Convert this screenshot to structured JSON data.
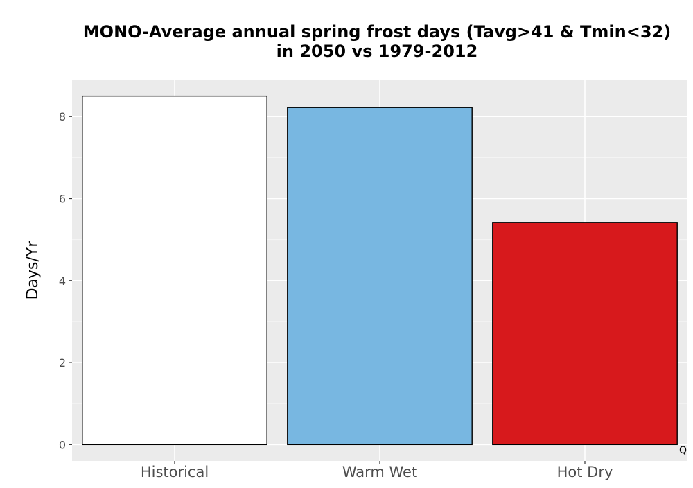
{
  "chart_data": {
    "type": "bar",
    "title_lines": [
      "MONO-Average annual spring frost days (Tavg>41 & Tmin<32)",
      "in 2050 vs 1979-2012"
    ],
    "xlabel": "",
    "ylabel": "Days/Yr",
    "categories": [
      "Historical",
      "Warm Wet",
      "Hot Dry"
    ],
    "values": [
      8.5,
      8.22,
      5.42
    ],
    "bar_colors": [
      "#ffffff",
      "#78b7e1",
      "#d7191c"
    ],
    "bar_outline_color": "#000000",
    "ylim": [
      -0.4,
      8.9
    ],
    "y_ticks": [
      0,
      2,
      4,
      6,
      8
    ],
    "y_minor_ticks": [
      1,
      3,
      5,
      7
    ],
    "grid": true,
    "legend": "none",
    "corner_note": "Q"
  },
  "colors": {
    "panel_background": "#ebebeb",
    "grid_major": "#ffffff",
    "grid_minor": "#f5f5f5",
    "tick_text": "#4d4d4d"
  }
}
